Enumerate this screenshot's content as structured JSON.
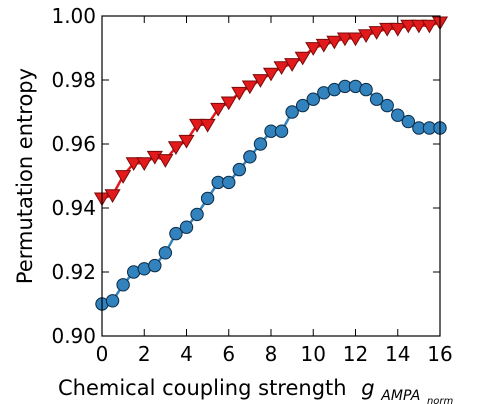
{
  "chart_data": {
    "type": "line",
    "xlabel": "Chemical coupling strength",
    "xlabel_math": "g",
    "xlabel_sub": "AMPA",
    "xlabel_subsub": "norm",
    "ylabel": "Permutation entropy",
    "xlim": [
      0,
      16
    ],
    "ylim": [
      0.9,
      1.0
    ],
    "xticks": [
      "0",
      "2",
      "4",
      "6",
      "8",
      "10",
      "12",
      "14",
      "16"
    ],
    "xtick_values": [
      0,
      2,
      4,
      6,
      8,
      10,
      12,
      14,
      16
    ],
    "yticks": [
      "0.90",
      "0.92",
      "0.94",
      "0.96",
      "0.98",
      "1.00"
    ],
    "ytick_values": [
      0.9,
      0.92,
      0.94,
      0.96,
      0.98,
      1.0
    ],
    "grid": false,
    "series": [
      {
        "marker": "triangle-down",
        "color": "#e31a1c",
        "edge": "#7a0a0a",
        "x": [
          0,
          0.5,
          1,
          1.5,
          2,
          2.5,
          3,
          3.5,
          4,
          4.5,
          5,
          5.5,
          6,
          6.5,
          7,
          7.5,
          8,
          8.5,
          9,
          9.5,
          10,
          10.5,
          11,
          11.5,
          12,
          12.5,
          13,
          13.5,
          14,
          14.5,
          15,
          15.5,
          16
        ],
        "y": [
          0.943,
          0.944,
          0.95,
          0.954,
          0.954,
          0.956,
          0.955,
          0.959,
          0.961,
          0.966,
          0.966,
          0.971,
          0.973,
          0.976,
          0.978,
          0.98,
          0.982,
          0.984,
          0.985,
          0.987,
          0.99,
          0.991,
          0.992,
          0.993,
          0.993,
          0.994,
          0.995,
          0.996,
          0.996,
          0.997,
          0.997,
          0.997,
          0.998
        ]
      },
      {
        "marker": "circle",
        "color": "#3182bd",
        "edge": "#0b2a44",
        "x": [
          0,
          0.5,
          1,
          1.5,
          2,
          2.5,
          3,
          3.5,
          4,
          4.5,
          5,
          5.5,
          6,
          6.5,
          7,
          7.5,
          8,
          8.5,
          9,
          9.5,
          10,
          10.5,
          11,
          11.5,
          12,
          12.5,
          13,
          13.5,
          14,
          14.5,
          15,
          15.5,
          16
        ],
        "y": [
          0.91,
          0.911,
          0.916,
          0.92,
          0.921,
          0.922,
          0.926,
          0.932,
          0.934,
          0.938,
          0.943,
          0.948,
          0.948,
          0.952,
          0.956,
          0.96,
          0.964,
          0.964,
          0.97,
          0.972,
          0.974,
          0.976,
          0.977,
          0.978,
          0.978,
          0.977,
          0.974,
          0.972,
          0.969,
          0.967,
          0.965,
          0.965,
          0.965
        ]
      }
    ]
  }
}
